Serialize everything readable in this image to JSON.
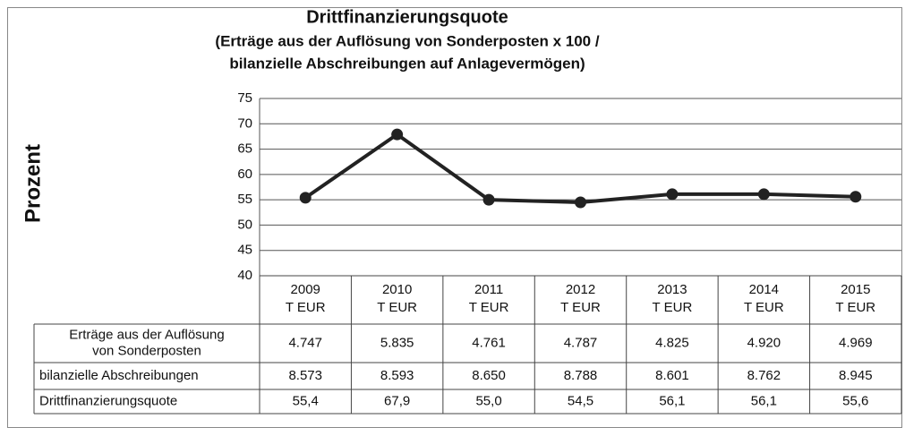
{
  "chart_data": {
    "type": "line",
    "title": "Drittfinanzierungsquote",
    "subtitle": [
      "(Erträge aus der Auflösung von Sonderposten x 100 /",
      "bilanzielle Abschreibungen auf Anlagevermögen)"
    ],
    "y_label": "Prozent",
    "categories": [
      "2009",
      "2010",
      "2011",
      "2012",
      "2013",
      "2014",
      "2015"
    ],
    "category_unit": "T EUR",
    "ylim": [
      40,
      75
    ],
    "yticks": [
      40,
      45,
      50,
      55,
      60,
      65,
      70,
      75
    ],
    "grid": true,
    "series": [
      {
        "name": "Drittfinanzierungsquote",
        "color": "#222222",
        "values": [
          55.4,
          67.9,
          55.0,
          54.5,
          56.1,
          56.1,
          55.6
        ],
        "value_labels": [
          "55,4",
          "67,9",
          "55,0",
          "54,5",
          "56,1",
          "56,1",
          "55,6"
        ]
      }
    ],
    "table": {
      "rows": [
        {
          "label": "Erträge aus der Auflösung von Sonderposten",
          "cells": [
            "4.747",
            "5.835",
            "4.761",
            "4.787",
            "4.825",
            "4.920",
            "4.969"
          ]
        },
        {
          "label": "bilanzielle Abschreibungen",
          "cells": [
            "8.573",
            "8.593",
            "8.650",
            "8.788",
            "8.601",
            "8.762",
            "8.945"
          ]
        }
      ]
    }
  }
}
